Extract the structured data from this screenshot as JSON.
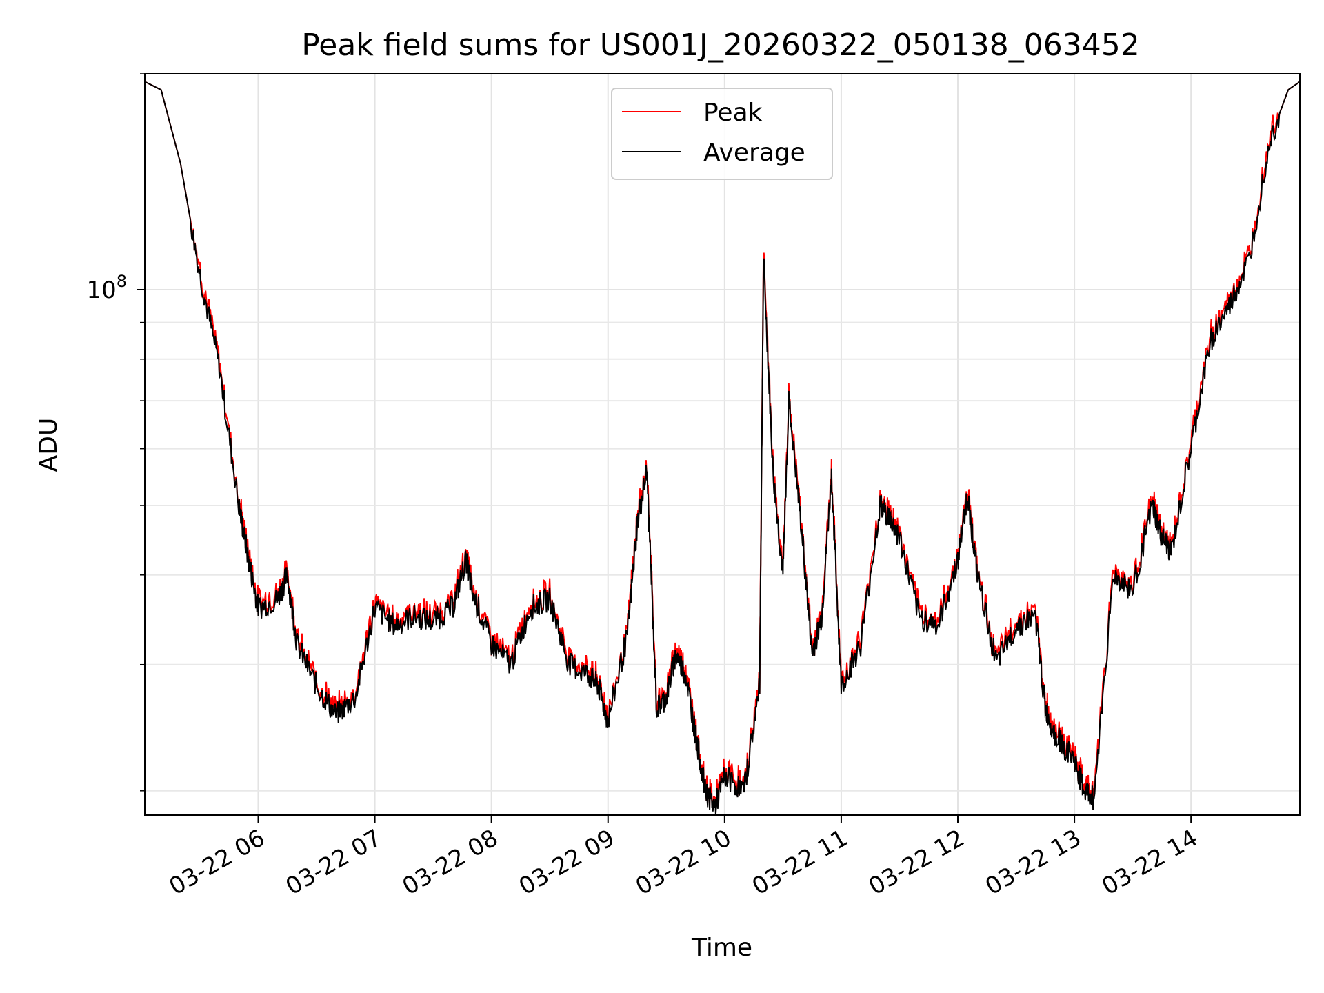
{
  "chart_data": {
    "type": "line",
    "title": "Peak field sums for US001J_20260322_050138_063452",
    "xlabel": "Time",
    "ylabel": "ADU",
    "yscale": "log",
    "grid": true,
    "legend_position": "top-center",
    "x_ticks": [
      "03-22 06",
      "03-22 07",
      "03-22 08",
      "03-22 09",
      "03-22 10",
      "03-22 11",
      "03-22 12",
      "03-22 13",
      "03-22 14"
    ],
    "y_major_tick": "10^8",
    "ylim": [
      18500000,
      200000000
    ],
    "xlim": [
      "2026-03-22 05:01:38",
      "2026-03-22 14:56:00"
    ],
    "series": [
      {
        "name": "Peak",
        "color": "#ff0000"
      },
      {
        "name": "Average",
        "color": "#000000"
      }
    ],
    "x": [
      "05:01",
      "05:10",
      "05:20",
      "05:30",
      "05:40",
      "05:50",
      "05:55",
      "06:00",
      "06:10",
      "06:15",
      "06:20",
      "06:30",
      "06:40",
      "06:50",
      "07:00",
      "07:10",
      "07:20",
      "07:30",
      "07:40",
      "07:47",
      "07:50",
      "08:00",
      "08:10",
      "08:20",
      "08:30",
      "08:40",
      "08:50",
      "08:55",
      "09:00",
      "09:10",
      "09:15",
      "09:20",
      "09:25",
      "09:30",
      "09:35",
      "09:40",
      "09:45",
      "09:50",
      "09:55",
      "10:00",
      "10:10",
      "10:18",
      "10:20",
      "10:25",
      "10:30",
      "10:33",
      "10:40",
      "10:45",
      "10:50",
      "10:55",
      "11:00",
      "11:10",
      "11:20",
      "11:25",
      "11:30",
      "11:40",
      "11:50",
      "12:00",
      "12:05",
      "12:10",
      "12:20",
      "12:30",
      "12:40",
      "12:45",
      "12:50",
      "13:00",
      "13:05",
      "13:10",
      "13:20",
      "13:30",
      "13:40",
      "13:45",
      "13:50",
      "14:00",
      "14:10",
      "14:20",
      "14:30",
      "14:40",
      "14:50",
      "14:56"
    ],
    "average_values": [
      195000000,
      190000000,
      150000000,
      105000000,
      78000000,
      50000000,
      42000000,
      36000000,
      37000000,
      40000000,
      32000000,
      28000000,
      25500000,
      27000000,
      36000000,
      34000000,
      35000000,
      34500000,
      36000000,
      42000000,
      38000000,
      32000000,
      30000000,
      36000000,
      37000000,
      30000000,
      29000000,
      28000000,
      25000000,
      33000000,
      47000000,
      56000000,
      26000000,
      27000000,
      31000000,
      29000000,
      24000000,
      20000000,
      19000000,
      21000000,
      20000000,
      28000000,
      110000000,
      55000000,
      40000000,
      70000000,
      45000000,
      31000000,
      35000000,
      55000000,
      28000000,
      32000000,
      50000000,
      48000000,
      45000000,
      35000000,
      34000000,
      42000000,
      52000000,
      40000000,
      30000000,
      34000000,
      35000000,
      26000000,
      24000000,
      22000000,
      20000000,
      19500000,
      40000000,
      38000000,
      50000000,
      45000000,
      43000000,
      60000000,
      85000000,
      95000000,
      110000000,
      160000000,
      190000000,
      195000000
    ]
  }
}
